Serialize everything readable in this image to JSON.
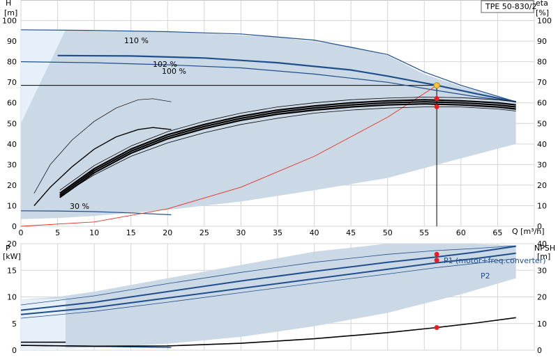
{
  "chart_data": [
    {
      "type": "line",
      "panel": "head",
      "title": "TPE 50-830/2",
      "xlabel": "Q [m³/h]",
      "ylabel_left": "H\n[m]",
      "ylabel_right": "eta\n[%]",
      "xlim": [
        0,
        70
      ],
      "ylim": [
        0,
        110
      ],
      "x_ticks": [
        "0",
        "5",
        "10",
        "15",
        "20",
        "25",
        "30",
        "35",
        "40",
        "45",
        "50",
        "55",
        "60",
        "65"
      ],
      "y_ticks": [
        "0",
        "10",
        "20",
        "30",
        "40",
        "50",
        "60",
        "70",
        "80",
        "90",
        "100"
      ],
      "x_unit_label": "Q [m³/h]",
      "left_unit_top": "H",
      "left_unit_bottom": "[m]",
      "right_unit_top": "eta",
      "right_unit_bottom": "[%]",
      "grid": true,
      "duty_point": {
        "q": 56.7,
        "h": 68.5
      },
      "operating_range": [
        [
          0,
          95.5
        ],
        [
          6.1,
          95.5
        ],
        [
          20,
          94.6
        ],
        [
          35,
          92
        ],
        [
          45,
          87.5
        ],
        [
          50,
          83
        ],
        [
          55,
          74
        ],
        [
          60,
          68
        ],
        [
          67.5,
          60.5
        ],
        [
          67.5,
          40
        ],
        [
          60,
          33
        ],
        [
          50,
          23.5
        ],
        [
          40,
          17.5
        ],
        [
          30,
          12
        ],
        [
          20,
          8
        ],
        [
          10,
          5
        ],
        [
          5,
          4
        ],
        [
          0,
          3.5
        ]
      ],
      "low_flow_region": [
        [
          0,
          95.5
        ],
        [
          6.1,
          95.5
        ],
        [
          2,
          65
        ],
        [
          0,
          50
        ]
      ],
      "series": [
        {
          "name": "110 %",
          "role": "speed",
          "points": [
            [
              0,
              95.5
            ],
            [
              10,
              95.2
            ],
            [
              20,
              94.6
            ],
            [
              30,
              93.5
            ],
            [
              40,
              90.5
            ],
            [
              50,
              83.5
            ],
            [
              55,
              75
            ],
            [
              60,
              68.5
            ],
            [
              67.5,
              60.5
            ]
          ]
        },
        {
          "name": "102 %",
          "role": "speed",
          "points": [
            [
              5,
              83
            ],
            [
              15,
              82.8
            ],
            [
              25,
              81.8
            ],
            [
              35,
              79.5
            ],
            [
              45,
              76
            ],
            [
              50,
              73
            ],
            [
              56.7,
              68.5
            ],
            [
              62,
              64.5
            ],
            [
              67.5,
              60.5
            ]
          ]
        },
        {
          "name": "100 %",
          "role": "speed",
          "points": [
            [
              0,
              80
            ],
            [
              10,
              79.5
            ],
            [
              20,
              78.5
            ],
            [
              30,
              77
            ],
            [
              40,
              74
            ],
            [
              45,
              72
            ],
            [
              50,
              70
            ],
            [
              56.7,
              66
            ],
            [
              62,
              63
            ],
            [
              67.5,
              60.5
            ]
          ]
        },
        {
          "name": "30 %",
          "role": "speed",
          "points": [
            [
              0,
              7.5
            ],
            [
              5,
              7.4
            ],
            [
              10,
              7.1
            ],
            [
              15,
              6.5
            ],
            [
              20.5,
              5.6
            ]
          ]
        },
        {
          "name": "",
          "role": "system",
          "points": [
            [
              0,
              0
            ],
            [
              10,
              2.1
            ],
            [
              20,
              8.5
            ],
            [
              30,
              19
            ],
            [
              40,
              34
            ],
            [
              50,
              53
            ],
            [
              56.7,
              68.5
            ]
          ]
        },
        {
          "name": "",
          "role": "eta",
          "points": [
            [
              5.3,
              14
            ],
            [
              10,
              26
            ],
            [
              15,
              35.5
            ],
            [
              20,
              42.5
            ],
            [
              25,
              47.5
            ],
            [
              30,
              51.5
            ],
            [
              35,
              54.5
            ],
            [
              40,
              56.5
            ],
            [
              45,
              58
            ],
            [
              50,
              59
            ],
            [
              55,
              59.5
            ],
            [
              60,
              59
            ],
            [
              65,
              58
            ],
            [
              67.5,
              57
            ]
          ]
        },
        {
          "name": "",
          "role": "eta",
          "points": [
            [
              5.3,
              15
            ],
            [
              10,
              27
            ],
            [
              15,
              36.5
            ],
            [
              20,
              43.5
            ],
            [
              25,
              48.5
            ],
            [
              30,
              52.5
            ],
            [
              35,
              55.5
            ],
            [
              40,
              57.5
            ],
            [
              45,
              59
            ],
            [
              50,
              60
            ],
            [
              55,
              60.5
            ],
            [
              60,
              60
            ],
            [
              65,
              59
            ],
            [
              67.5,
              58
            ]
          ]
        },
        {
          "name": "",
          "role": "eta",
          "points": [
            [
              5.3,
              16
            ],
            [
              10,
              28
            ],
            [
              15,
              37.5
            ],
            [
              20,
              44.5
            ],
            [
              25,
              49.5
            ],
            [
              30,
              53.5
            ],
            [
              35,
              56.5
            ],
            [
              40,
              58.5
            ],
            [
              45,
              60
            ],
            [
              50,
              61
            ],
            [
              55,
              61.5
            ],
            [
              60,
              61
            ],
            [
              65,
              60
            ],
            [
              67.5,
              59
            ]
          ]
        },
        {
          "name": "",
          "role": "eta-outer",
          "points": [
            [
              5.3,
              14.5
            ],
            [
              10,
              25
            ],
            [
              15,
              34
            ],
            [
              20,
              40.5
            ],
            [
              25,
              45.5
            ],
            [
              30,
              49.5
            ],
            [
              35,
              52.5
            ],
            [
              40,
              55
            ],
            [
              45,
              56.5
            ],
            [
              50,
              57.5
            ],
            [
              55,
              58
            ],
            [
              60,
              58
            ],
            [
              65,
              57
            ],
            [
              67.5,
              56
            ]
          ]
        },
        {
          "name": "",
          "role": "eta-outer",
          "points": [
            [
              5.3,
              17.5
            ],
            [
              10,
              29.5
            ],
            [
              15,
              39
            ],
            [
              20,
              46
            ],
            [
              25,
              51
            ],
            [
              30,
              55
            ],
            [
              35,
              58
            ],
            [
              40,
              60
            ],
            [
              45,
              61.5
            ],
            [
              50,
              62.3
            ],
            [
              55,
              62.8
            ],
            [
              60,
              62.5
            ],
            [
              65,
              61.5
            ],
            [
              67.5,
              60.5
            ]
          ]
        },
        {
          "name": "",
          "role": "eta-lowspeed",
          "points": [
            [
              1.8,
              16
            ],
            [
              4,
              30
            ],
            [
              7,
              42
            ],
            [
              10,
              51
            ],
            [
              13,
              57.5
            ],
            [
              16,
              61.5
            ],
            [
              18,
              62
            ],
            [
              20.5,
              60.5
            ]
          ]
        },
        {
          "name": "",
          "role": "eta-lowspeed",
          "points": [
            [
              1.8,
              10
            ],
            [
              4,
              19
            ],
            [
              7,
              29
            ],
            [
              10,
              37.5
            ],
            [
              13,
              43.5
            ],
            [
              16,
              47
            ],
            [
              18,
              48
            ],
            [
              20.5,
              47
            ]
          ]
        }
      ],
      "markers": [
        {
          "q": 56.7,
          "h": 68.5,
          "kind": "duty"
        },
        {
          "q": 56.7,
          "h": 62.1,
          "kind": "eta"
        },
        {
          "q": 56.7,
          "h": 58.1,
          "kind": "eta"
        }
      ]
    },
    {
      "type": "line",
      "panel": "power",
      "xlim": [
        0,
        70
      ],
      "ylim_left": [
        0,
        20
      ],
      "ylim_right": [
        0,
        40
      ],
      "y_ticks_left": [
        "0",
        "5",
        "10",
        "15",
        "20"
      ],
      "y_ticks_right": [
        "0",
        "10",
        "20",
        "30",
        "40"
      ],
      "left_unit_top": "P",
      "left_unit_bottom": "[kW]",
      "right_unit_top": "NPSH",
      "right_unit_bottom": "[m]",
      "grid": true,
      "operating_range": [
        [
          0,
          9.5
        ],
        [
          5,
          10
        ],
        [
          10,
          11
        ],
        [
          20,
          13.5
        ],
        [
          30,
          16
        ],
        [
          40,
          18.5
        ],
        [
          50,
          20
        ],
        [
          60,
          20
        ],
        [
          67.5,
          19.7
        ],
        [
          67.5,
          13.5
        ],
        [
          60,
          10.5
        ],
        [
          50,
          7
        ],
        [
          40,
          4.5
        ],
        [
          30,
          2.5
        ],
        [
          20,
          1.2
        ],
        [
          10,
          0.5
        ],
        [
          5,
          0.3
        ],
        [
          0,
          0.2
        ]
      ],
      "series": [
        {
          "name": "P1 (motor+freq.converter)",
          "role": "power",
          "points": [
            [
              0,
              7.5
            ],
            [
              10,
              9
            ],
            [
              20,
              11
            ],
            [
              30,
              13
            ],
            [
              40,
              14.8
            ],
            [
              50,
              16.5
            ],
            [
              56.7,
              17.5
            ],
            [
              62,
              18.4
            ],
            [
              67.5,
              19.5
            ]
          ]
        },
        {
          "name": "P2",
          "role": "power",
          "points": [
            [
              0,
              6.7
            ],
            [
              10,
              8
            ],
            [
              20,
              9.8
            ],
            [
              30,
              11.6
            ],
            [
              40,
              13.4
            ],
            [
              50,
              15.2
            ],
            [
              56.7,
              16.4
            ],
            [
              62,
              17.2
            ],
            [
              67.5,
              18.2
            ]
          ]
        },
        {
          "name": "",
          "role": "power-outer",
          "points": [
            [
              0,
              8.5
            ],
            [
              10,
              10.2
            ],
            [
              20,
              12.5
            ],
            [
              30,
              14.6
            ],
            [
              40,
              16.5
            ],
            [
              50,
              18
            ],
            [
              56.7,
              18.7
            ],
            [
              62,
              19.1
            ],
            [
              67.5,
              19.6
            ]
          ]
        },
        {
          "name": "",
          "role": "power-outer",
          "points": [
            [
              0,
              6
            ],
            [
              10,
              7.3
            ],
            [
              20,
              9
            ],
            [
              30,
              10.8
            ],
            [
              40,
              12.6
            ],
            [
              50,
              14.3
            ],
            [
              56.7,
              15.5
            ],
            [
              62,
              16.3
            ],
            [
              67.5,
              17.2
            ]
          ]
        },
        {
          "name": "",
          "role": "power-lowspeed",
          "points": [
            [
              0,
              0.9
            ],
            [
              10,
              0.7
            ],
            [
              20.5,
              0.5
            ]
          ]
        },
        {
          "name": "",
          "role": "npsh",
          "points": [
            [
              0,
              1.8
            ],
            [
              10,
              1.5
            ],
            [
              20,
              1.6
            ],
            [
              30,
              2.6
            ],
            [
              40,
              4.3
            ],
            [
              50,
              6.6
            ],
            [
              56.7,
              8.5
            ],
            [
              62,
              10.2
            ],
            [
              67.5,
              12.2
            ]
          ]
        }
      ],
      "markers": [
        {
          "q": 56.7,
          "y": 18.0,
          "kind": "p1"
        },
        {
          "q": 56.7,
          "y": 16.9,
          "kind": "p2"
        },
        {
          "q": 56.7,
          "y": 4.25,
          "kind": "npsh"
        }
      ]
    }
  ],
  "labels": {
    "speed_110": "110 %",
    "speed_102": "102 %",
    "speed_100": "100 %",
    "speed_30": "30 %",
    "p1": "P1 (motor+freq.converter)",
    "p2": "P2"
  }
}
